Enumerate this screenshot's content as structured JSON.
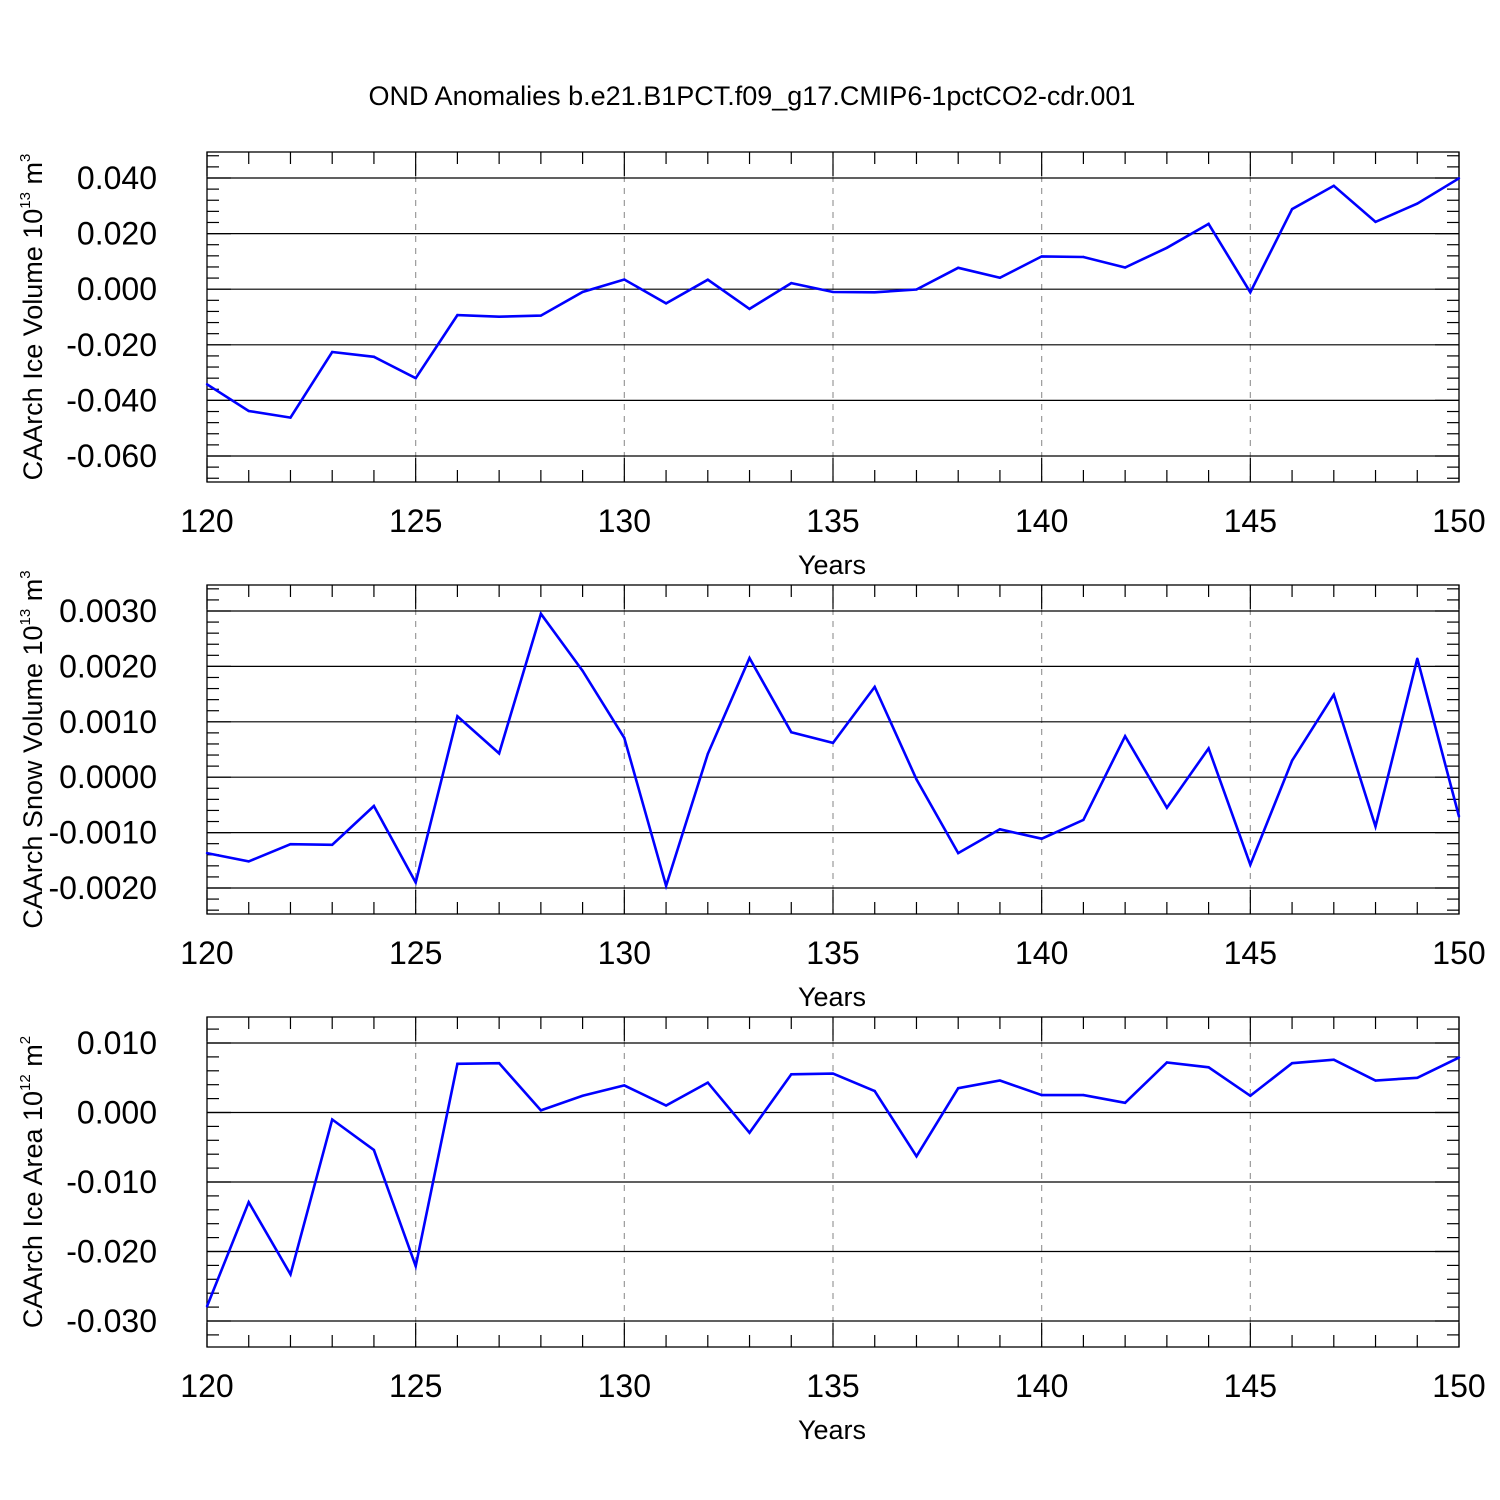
{
  "title": "OND Anomalies b.e21.B1PCT.f09_g17.CMIP6-1pctCO2-cdr.001",
  "chart_data": [
    {
      "type": "line",
      "xlabel": "Years",
      "ylabel": {
        "main": "CAArch Ice Volume 10",
        "exp": "13",
        "unit": " m",
        "unit_exp": "3"
      },
      "xlim": [
        120,
        150
      ],
      "ylim": [
        -0.06,
        0.04
      ],
      "xticks": [
        120,
        125,
        130,
        135,
        140,
        145,
        150
      ],
      "xtick_labels": [
        "120",
        "125",
        "130",
        "135",
        "140",
        "145",
        "150"
      ],
      "yticks": [
        -0.06,
        -0.04,
        -0.02,
        0.0,
        0.02,
        0.04
      ],
      "ytick_labels": [
        "-0.060",
        "-0.040",
        "-0.020",
        "0.000",
        "0.020",
        "0.040"
      ],
      "grid": "vertical dashed at major ticks",
      "color": "#0000ff",
      "x": [
        120,
        121,
        122,
        123,
        124,
        125,
        126,
        127,
        128,
        129,
        130,
        131,
        132,
        133,
        134,
        135,
        136,
        137,
        138,
        139,
        140,
        141,
        142,
        143,
        144,
        145,
        146,
        147,
        148,
        149,
        150
      ],
      "y": [
        -0.0342,
        -0.0438,
        -0.0462,
        -0.0226,
        -0.0243,
        -0.032,
        -0.0093,
        -0.0099,
        -0.0095,
        -0.001,
        0.0035,
        -0.0051,
        0.0034,
        -0.0071,
        0.0022,
        -0.001,
        -0.0011,
        -0.0001,
        0.0077,
        0.0041,
        0.0118,
        0.0116,
        0.0078,
        0.0149,
        0.0235,
        -0.0011,
        0.0288,
        0.0372,
        0.0242,
        0.0308,
        0.0399
      ]
    },
    {
      "type": "line",
      "xlabel": "Years",
      "ylabel": {
        "main": "CAArch Snow Volume 10",
        "exp": "13",
        "unit": " m",
        "unit_exp": "3"
      },
      "xlim": [
        120,
        150
      ],
      "ylim": [
        -0.002,
        0.003
      ],
      "xticks": [
        120,
        125,
        130,
        135,
        140,
        145,
        150
      ],
      "xtick_labels": [
        "120",
        "125",
        "130",
        "135",
        "140",
        "145",
        "150"
      ],
      "yticks": [
        -0.002,
        -0.001,
        0.0,
        0.001,
        0.002,
        0.003
      ],
      "ytick_labels": [
        "-0.0020",
        "-0.0010",
        "0.0000",
        "0.0010",
        "0.0020",
        "0.0030"
      ],
      "grid": "vertical dashed at major ticks",
      "color": "#0000ff",
      "x": [
        120,
        121,
        122,
        123,
        124,
        125,
        126,
        127,
        128,
        129,
        130,
        131,
        132,
        133,
        134,
        135,
        136,
        137,
        138,
        139,
        140,
        141,
        142,
        143,
        144,
        145,
        146,
        147,
        148,
        149,
        150
      ],
      "y": [
        -0.00137,
        -0.00152,
        -0.00121,
        -0.00122,
        -0.00052,
        -0.0019,
        0.0011,
        0.00043,
        0.00295,
        0.00192,
        0.00071,
        -0.00196,
        0.00042,
        0.00215,
        0.00081,
        0.00062,
        0.00163,
        -4e-05,
        -0.00137,
        -0.00094,
        -0.00111,
        -0.00077,
        0.00074,
        -0.00055,
        0.00052,
        -0.00158,
        0.0003,
        0.00149,
        -0.00089,
        0.00214,
        -0.00071
      ]
    },
    {
      "type": "line",
      "xlabel": "Years",
      "ylabel": {
        "main": "CAArch Ice Area 10",
        "exp": "12",
        "unit": " m",
        "unit_exp": "2"
      },
      "xlim": [
        120,
        150
      ],
      "ylim": [
        -0.03,
        0.01
      ],
      "xticks": [
        120,
        125,
        130,
        135,
        140,
        145,
        150
      ],
      "xtick_labels": [
        "120",
        "125",
        "130",
        "135",
        "140",
        "145",
        "150"
      ],
      "yticks": [
        -0.03,
        -0.02,
        -0.01,
        0.0,
        0.01
      ],
      "ytick_labels": [
        "-0.030",
        "-0.020",
        "-0.010",
        "0.000",
        "0.010"
      ],
      "grid": "vertical dashed at major ticks",
      "color": "#0000ff",
      "x": [
        120,
        121,
        122,
        123,
        124,
        125,
        126,
        127,
        128,
        129,
        130,
        131,
        132,
        133,
        134,
        135,
        136,
        137,
        138,
        139,
        140,
        141,
        142,
        143,
        144,
        145,
        146,
        147,
        148,
        149,
        150
      ],
      "y": [
        -0.0279,
        -0.0129,
        -0.0233,
        -0.001,
        -0.0054,
        -0.0221,
        0.007,
        0.0071,
        0.0003,
        0.0024,
        0.0039,
        0.001,
        0.0043,
        -0.0029,
        0.0055,
        0.0056,
        0.0031,
        -0.0063,
        0.0035,
        0.0046,
        0.0025,
        0.0025,
        0.0014,
        0.0072,
        0.0065,
        0.0024,
        0.0071,
        0.0076,
        0.0046,
        0.005,
        0.0079
      ]
    }
  ]
}
